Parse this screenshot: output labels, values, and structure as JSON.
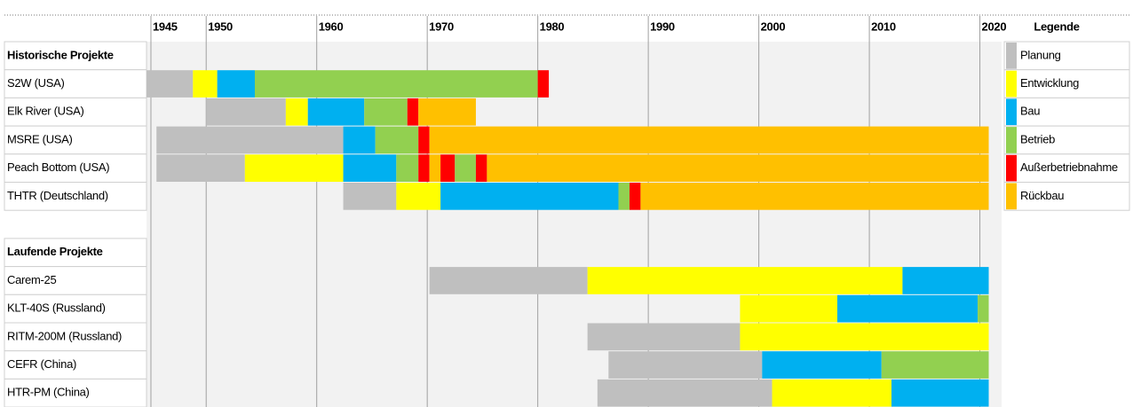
{
  "chart_data": {
    "type": "gantt",
    "legend_title": "Legende",
    "phases": [
      {
        "name": "Planung",
        "color": "#bfbfbf"
      },
      {
        "name": "Entwicklung",
        "color": "#ffff00"
      },
      {
        "name": "Bau",
        "color": "#00b0f0"
      },
      {
        "name": "Betrieb",
        "color": "#92d050"
      },
      {
        "name": "Außerbetriebnahme",
        "color": "#ff0000"
      },
      {
        "name": "Rückbau",
        "color": "#ffc000"
      }
    ],
    "xlim": [
      1944.6,
      2021
    ],
    "xticks": [
      1945,
      1950,
      1960,
      1970,
      1980,
      1990,
      2000,
      2010,
      2020
    ],
    "grid": true,
    "groups": [
      {
        "name": "Historische Projekte",
        "rows": [
          {
            "name": "S2W (USA)",
            "segments": [
              {
                "phase": "Planung",
                "start": 1944.6,
                "end": 1948.8
              },
              {
                "phase": "Entwicklung",
                "start": 1948.8,
                "end": 1951
              },
              {
                "phase": "Bau",
                "start": 1951,
                "end": 1954.4
              },
              {
                "phase": "Betrieb",
                "start": 1954.4,
                "end": 1980
              },
              {
                "phase": "Außerbetriebnahme",
                "start": 1980,
                "end": 1981
              }
            ]
          },
          {
            "name": "Elk River (USA)",
            "segments": [
              {
                "phase": "Planung",
                "start": 1950,
                "end": 1957.2
              },
              {
                "phase": "Entwicklung",
                "start": 1957.2,
                "end": 1959.2
              },
              {
                "phase": "Bau",
                "start": 1959.2,
                "end": 1964.3
              },
              {
                "phase": "Betrieb",
                "start": 1964.3,
                "end": 1968.2
              },
              {
                "phase": "Außerbetriebnahme",
                "start": 1968.2,
                "end": 1969.2
              },
              {
                "phase": "Rückbau",
                "start": 1969.2,
                "end": 1974.4
              }
            ]
          },
          {
            "name": "MSRE (USA)",
            "segments": [
              {
                "phase": "Planung",
                "start": 1945.5,
                "end": 1962.4
              },
              {
                "phase": "Bau",
                "start": 1962.4,
                "end": 1965.3
              },
              {
                "phase": "Betrieb",
                "start": 1965.3,
                "end": 1969.2
              },
              {
                "phase": "Außerbetriebnahme",
                "start": 1969.2,
                "end": 1970.2
              },
              {
                "phase": "Rückbau",
                "start": 1970.2,
                "end": 2020.8
              }
            ]
          },
          {
            "name": "Peach Bottom (USA)",
            "segments": [
              {
                "phase": "Planung",
                "start": 1945.5,
                "end": 1953.5
              },
              {
                "phase": "Entwicklung",
                "start": 1953.5,
                "end": 1962.4
              },
              {
                "phase": "Bau",
                "start": 1962.4,
                "end": 1967.2
              },
              {
                "phase": "Betrieb",
                "start": 1967.2,
                "end": 1969.2
              },
              {
                "phase": "Außerbetriebnahme",
                "start": 1969.2,
                "end": 1970.2
              },
              {
                "phase": "Rückbau",
                "start": 1970.2,
                "end": 1971.2
              },
              {
                "phase": "Außerbetriebnahme",
                "start": 1971.2,
                "end": 1972.5
              },
              {
                "phase": "Betrieb",
                "start": 1972.5,
                "end": 1974.4
              },
              {
                "phase": "Außerbetriebnahme",
                "start": 1974.4,
                "end": 1975.4
              },
              {
                "phase": "Rückbau",
                "start": 1975.4,
                "end": 2020.8
              }
            ]
          },
          {
            "name": "THTR (Deutschland)",
            "segments": [
              {
                "phase": "Planung",
                "start": 1962.4,
                "end": 1967.2
              },
              {
                "phase": "Entwicklung",
                "start": 1967.2,
                "end": 1971.2
              },
              {
                "phase": "Bau",
                "start": 1971.2,
                "end": 1987.3
              },
              {
                "phase": "Betrieb",
                "start": 1987.3,
                "end": 1988.3
              },
              {
                "phase": "Außerbetriebnahme",
                "start": 1988.3,
                "end": 1989.3
              },
              {
                "phase": "Rückbau",
                "start": 1989.3,
                "end": 2020.8
              }
            ]
          }
        ]
      },
      {
        "name": "Laufende Projekte",
        "rows": [
          {
            "name": "Carem-25",
            "segments": [
              {
                "phase": "Planung",
                "start": 1970.2,
                "end": 1984.5
              },
              {
                "phase": "Entwicklung",
                "start": 1984.5,
                "end": 2013
              },
              {
                "phase": "Bau",
                "start": 2013,
                "end": 2020.8
              }
            ]
          },
          {
            "name": "KLT-40S (Russland)",
            "segments": [
              {
                "phase": "Entwicklung",
                "start": 1998.3,
                "end": 2007.1
              },
              {
                "phase": "Bau",
                "start": 2007.1,
                "end": 2019.8
              },
              {
                "phase": "Betrieb",
                "start": 2019.8,
                "end": 2020.8
              }
            ]
          },
          {
            "name": "RITM-200M (Russland)",
            "segments": [
              {
                "phase": "Planung",
                "start": 1984.5,
                "end": 1998.3
              },
              {
                "phase": "Entwicklung",
                "start": 1998.3,
                "end": 2020.8
              }
            ]
          },
          {
            "name": "CEFR (China)",
            "segments": [
              {
                "phase": "Planung",
                "start": 1986.4,
                "end": 2000.3
              },
              {
                "phase": "Bau",
                "start": 2000.3,
                "end": 2011.1
              },
              {
                "phase": "Betrieb",
                "start": 2011.1,
                "end": 2020.8
              }
            ]
          },
          {
            "name": "HTR-PM (China)",
            "segments": [
              {
                "phase": "Planung",
                "start": 1985.4,
                "end": 2001.2
              },
              {
                "phase": "Entwicklung",
                "start": 2001.2,
                "end": 2012
              },
              {
                "phase": "Bau",
                "start": 2012,
                "end": 2020.8
              }
            ]
          }
        ]
      }
    ]
  }
}
